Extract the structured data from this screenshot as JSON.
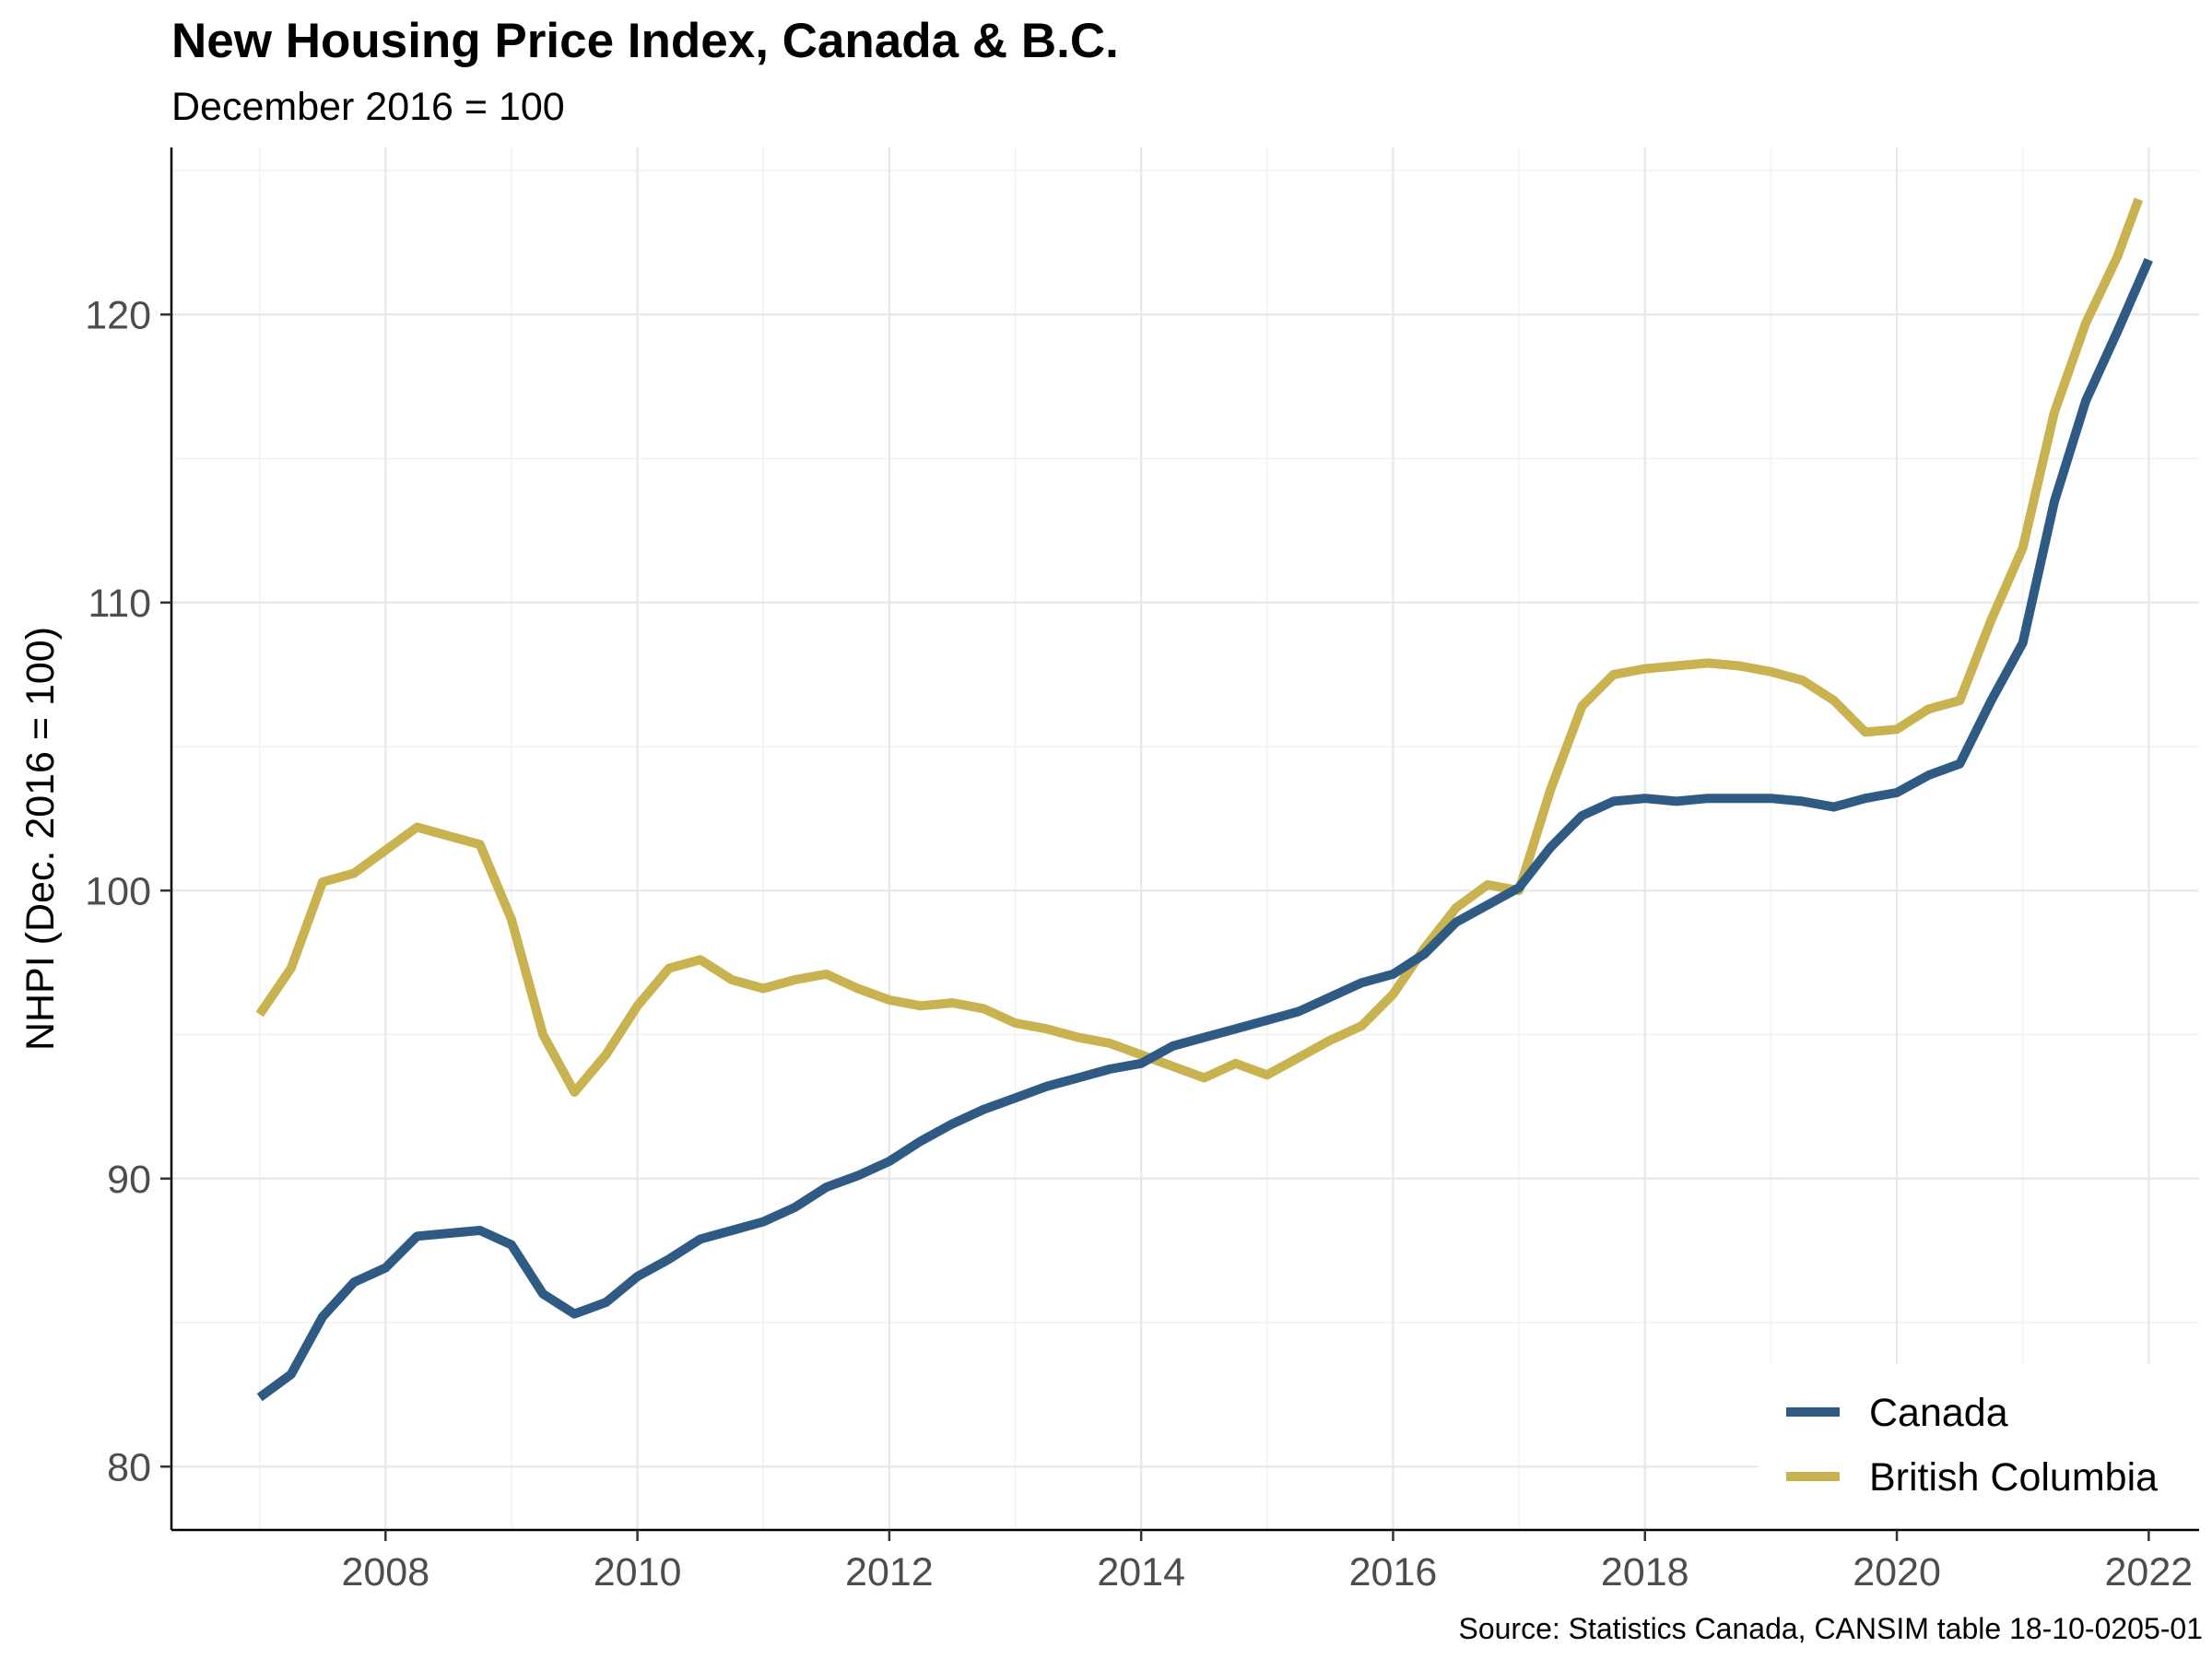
{
  "chart_data": {
    "type": "line",
    "title": "New Housing Price Index, Canada & B.C.",
    "subtitle": "December 2016 = 100",
    "ylabel": "NHPI (Dec. 2016 = 100)",
    "xlabel": "",
    "caption": "Source: Statistics Canada, CANSIM table 18-10-0205-01",
    "xlim": [
      2006.3,
      2022.4
    ],
    "ylim": [
      77.8,
      125.8
    ],
    "x_ticks": [
      2008,
      2010,
      2012,
      2014,
      2016,
      2018,
      2020,
      2022
    ],
    "x_tick_labels": [
      "2008",
      "2010",
      "2012",
      "2014",
      "2016",
      "2018",
      "2020",
      "2022"
    ],
    "y_ticks": [
      80,
      90,
      100,
      110,
      120
    ],
    "y_tick_labels": [
      "80",
      "90",
      "100",
      "110",
      "120"
    ],
    "grid": true,
    "legend_position": "bottom-right",
    "series": [
      {
        "name": "Canada",
        "color": "#2e5a84",
        "points": [
          [
            2007.0,
            82.4
          ],
          [
            2007.25,
            83.2
          ],
          [
            2007.5,
            85.2
          ],
          [
            2007.75,
            86.4
          ],
          [
            2008.0,
            86.9
          ],
          [
            2008.25,
            88.0
          ],
          [
            2008.5,
            88.1
          ],
          [
            2008.75,
            88.2
          ],
          [
            2009.0,
            87.7
          ],
          [
            2009.25,
            86.0
          ],
          [
            2009.5,
            85.3
          ],
          [
            2009.75,
            85.7
          ],
          [
            2010.0,
            86.6
          ],
          [
            2010.25,
            87.2
          ],
          [
            2010.5,
            87.9
          ],
          [
            2010.75,
            88.2
          ],
          [
            2011.0,
            88.5
          ],
          [
            2011.25,
            89.0
          ],
          [
            2011.5,
            89.7
          ],
          [
            2011.75,
            90.1
          ],
          [
            2012.0,
            90.6
          ],
          [
            2012.25,
            91.3
          ],
          [
            2012.5,
            91.9
          ],
          [
            2012.75,
            92.4
          ],
          [
            2013.0,
            92.8
          ],
          [
            2013.25,
            93.2
          ],
          [
            2013.5,
            93.5
          ],
          [
            2013.75,
            93.8
          ],
          [
            2014.0,
            94.0
          ],
          [
            2014.25,
            94.6
          ],
          [
            2014.5,
            94.9
          ],
          [
            2014.75,
            95.2
          ],
          [
            2015.0,
            95.5
          ],
          [
            2015.25,
            95.8
          ],
          [
            2015.5,
            96.3
          ],
          [
            2015.75,
            96.8
          ],
          [
            2016.0,
            97.1
          ],
          [
            2016.25,
            97.8
          ],
          [
            2016.5,
            98.9
          ],
          [
            2016.75,
            99.5
          ],
          [
            2017.0,
            100.1
          ],
          [
            2017.25,
            101.5
          ],
          [
            2017.5,
            102.6
          ],
          [
            2017.75,
            103.1
          ],
          [
            2018.0,
            103.2
          ],
          [
            2018.25,
            103.1
          ],
          [
            2018.5,
            103.2
          ],
          [
            2018.75,
            103.2
          ],
          [
            2019.0,
            103.2
          ],
          [
            2019.25,
            103.1
          ],
          [
            2019.5,
            102.9
          ],
          [
            2019.75,
            103.2
          ],
          [
            2020.0,
            103.4
          ],
          [
            2020.25,
            104.0
          ],
          [
            2020.5,
            104.4
          ],
          [
            2020.75,
            106.6
          ],
          [
            2021.0,
            108.6
          ],
          [
            2021.25,
            113.5
          ],
          [
            2021.5,
            117.0
          ],
          [
            2021.75,
            119.4
          ],
          [
            2022.0,
            121.9
          ]
        ]
      },
      {
        "name": "British Columbia",
        "color": "#c8b350",
        "points": [
          [
            2007.0,
            95.7
          ],
          [
            2007.25,
            97.3
          ],
          [
            2007.5,
            100.3
          ],
          [
            2007.75,
            100.6
          ],
          [
            2008.0,
            101.4
          ],
          [
            2008.25,
            102.2
          ],
          [
            2008.5,
            101.9
          ],
          [
            2008.75,
            101.6
          ],
          [
            2009.0,
            99.0
          ],
          [
            2009.25,
            95.0
          ],
          [
            2009.5,
            93.0
          ],
          [
            2009.75,
            94.3
          ],
          [
            2010.0,
            96.0
          ],
          [
            2010.25,
            97.3
          ],
          [
            2010.5,
            97.6
          ],
          [
            2010.75,
            96.9
          ],
          [
            2011.0,
            96.6
          ],
          [
            2011.25,
            96.9
          ],
          [
            2011.5,
            97.1
          ],
          [
            2011.75,
            96.6
          ],
          [
            2012.0,
            96.2
          ],
          [
            2012.25,
            96.0
          ],
          [
            2012.5,
            96.1
          ],
          [
            2012.75,
            95.9
          ],
          [
            2013.0,
            95.4
          ],
          [
            2013.25,
            95.2
          ],
          [
            2013.5,
            94.9
          ],
          [
            2013.75,
            94.7
          ],
          [
            2014.0,
            94.3
          ],
          [
            2014.25,
            93.9
          ],
          [
            2014.5,
            93.5
          ],
          [
            2014.75,
            94.0
          ],
          [
            2015.0,
            93.6
          ],
          [
            2015.25,
            94.2
          ],
          [
            2015.5,
            94.8
          ],
          [
            2015.75,
            95.3
          ],
          [
            2016.0,
            96.4
          ],
          [
            2016.25,
            98.0
          ],
          [
            2016.5,
            99.4
          ],
          [
            2016.75,
            100.2
          ],
          [
            2017.0,
            100.0
          ],
          [
            2017.25,
            103.5
          ],
          [
            2017.5,
            106.4
          ],
          [
            2017.75,
            107.5
          ],
          [
            2018.0,
            107.7
          ],
          [
            2018.25,
            107.8
          ],
          [
            2018.5,
            107.9
          ],
          [
            2018.75,
            107.8
          ],
          [
            2019.0,
            107.6
          ],
          [
            2019.25,
            107.3
          ],
          [
            2019.5,
            106.6
          ],
          [
            2019.75,
            105.5
          ],
          [
            2020.0,
            105.6
          ],
          [
            2020.25,
            106.3
          ],
          [
            2020.5,
            106.6
          ],
          [
            2020.75,
            109.4
          ],
          [
            2021.0,
            111.9
          ],
          [
            2021.25,
            116.6
          ],
          [
            2021.5,
            119.7
          ],
          [
            2021.75,
            122.0
          ],
          [
            2021.92,
            124.0
          ]
        ]
      }
    ]
  }
}
